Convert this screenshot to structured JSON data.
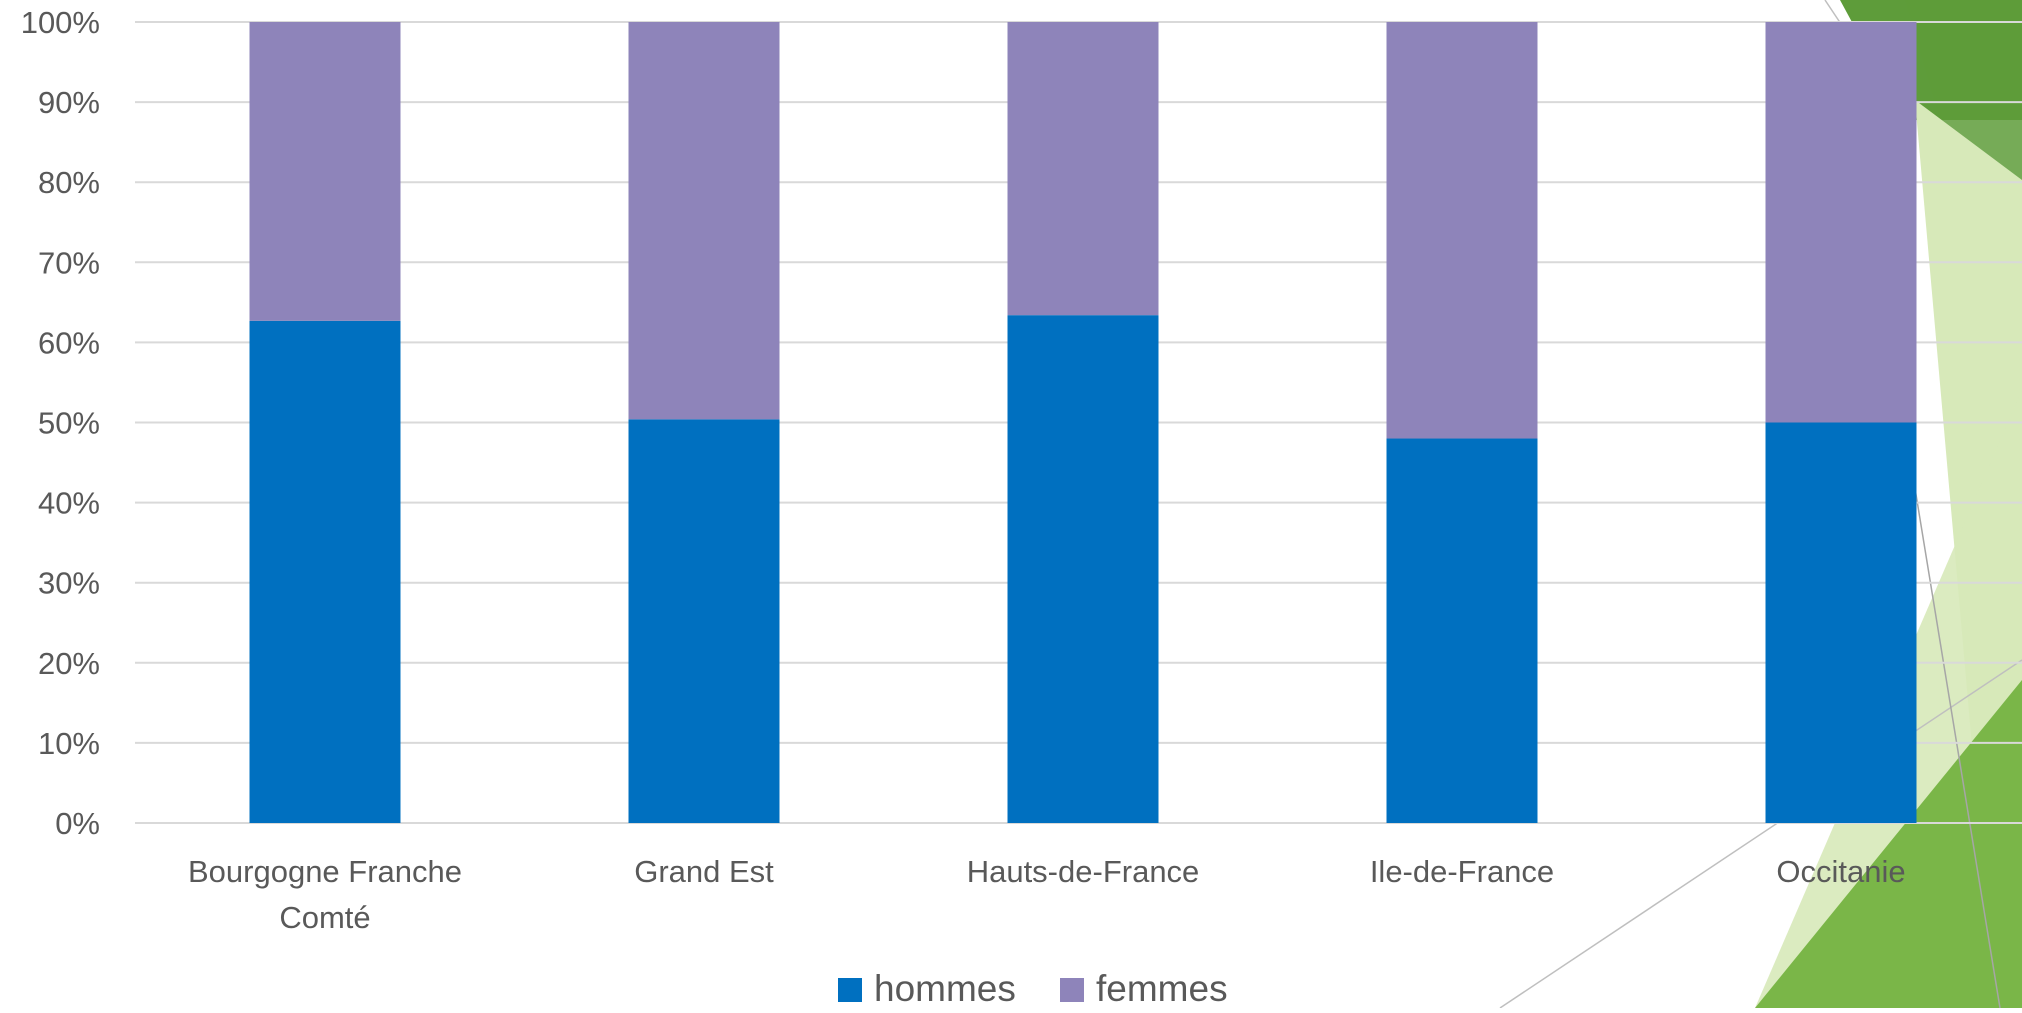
{
  "chart_data": {
    "type": "bar",
    "stacked": true,
    "percent_stacked": true,
    "title": "",
    "xlabel": "",
    "ylabel": "",
    "ylim": [
      0,
      100
    ],
    "y_ticks": [
      0,
      10,
      20,
      30,
      40,
      50,
      60,
      70,
      80,
      90,
      100
    ],
    "y_tick_suffix": "%",
    "grid": true,
    "legend_position": "bottom",
    "categories": [
      [
        "Bourgogne Franche",
        "Comté"
      ],
      [
        "Grand Est"
      ],
      [
        "Hauts-de-France"
      ],
      [
        "Ile-de-France"
      ],
      [
        "Occitanie"
      ]
    ],
    "series": [
      {
        "name": "hommes",
        "color": "#0070C0",
        "values": [
          62.7,
          50.4,
          63.4,
          48.0,
          50.0
        ]
      },
      {
        "name": "femmes",
        "color": "#8E84BA",
        "values": [
          37.3,
          49.6,
          36.6,
          52.0,
          50.0
        ]
      }
    ]
  },
  "decoration": {
    "accent_dark": "#5E9C3A",
    "accent_mid": "#7AB648",
    "accent_light": "#D7E9B9"
  }
}
